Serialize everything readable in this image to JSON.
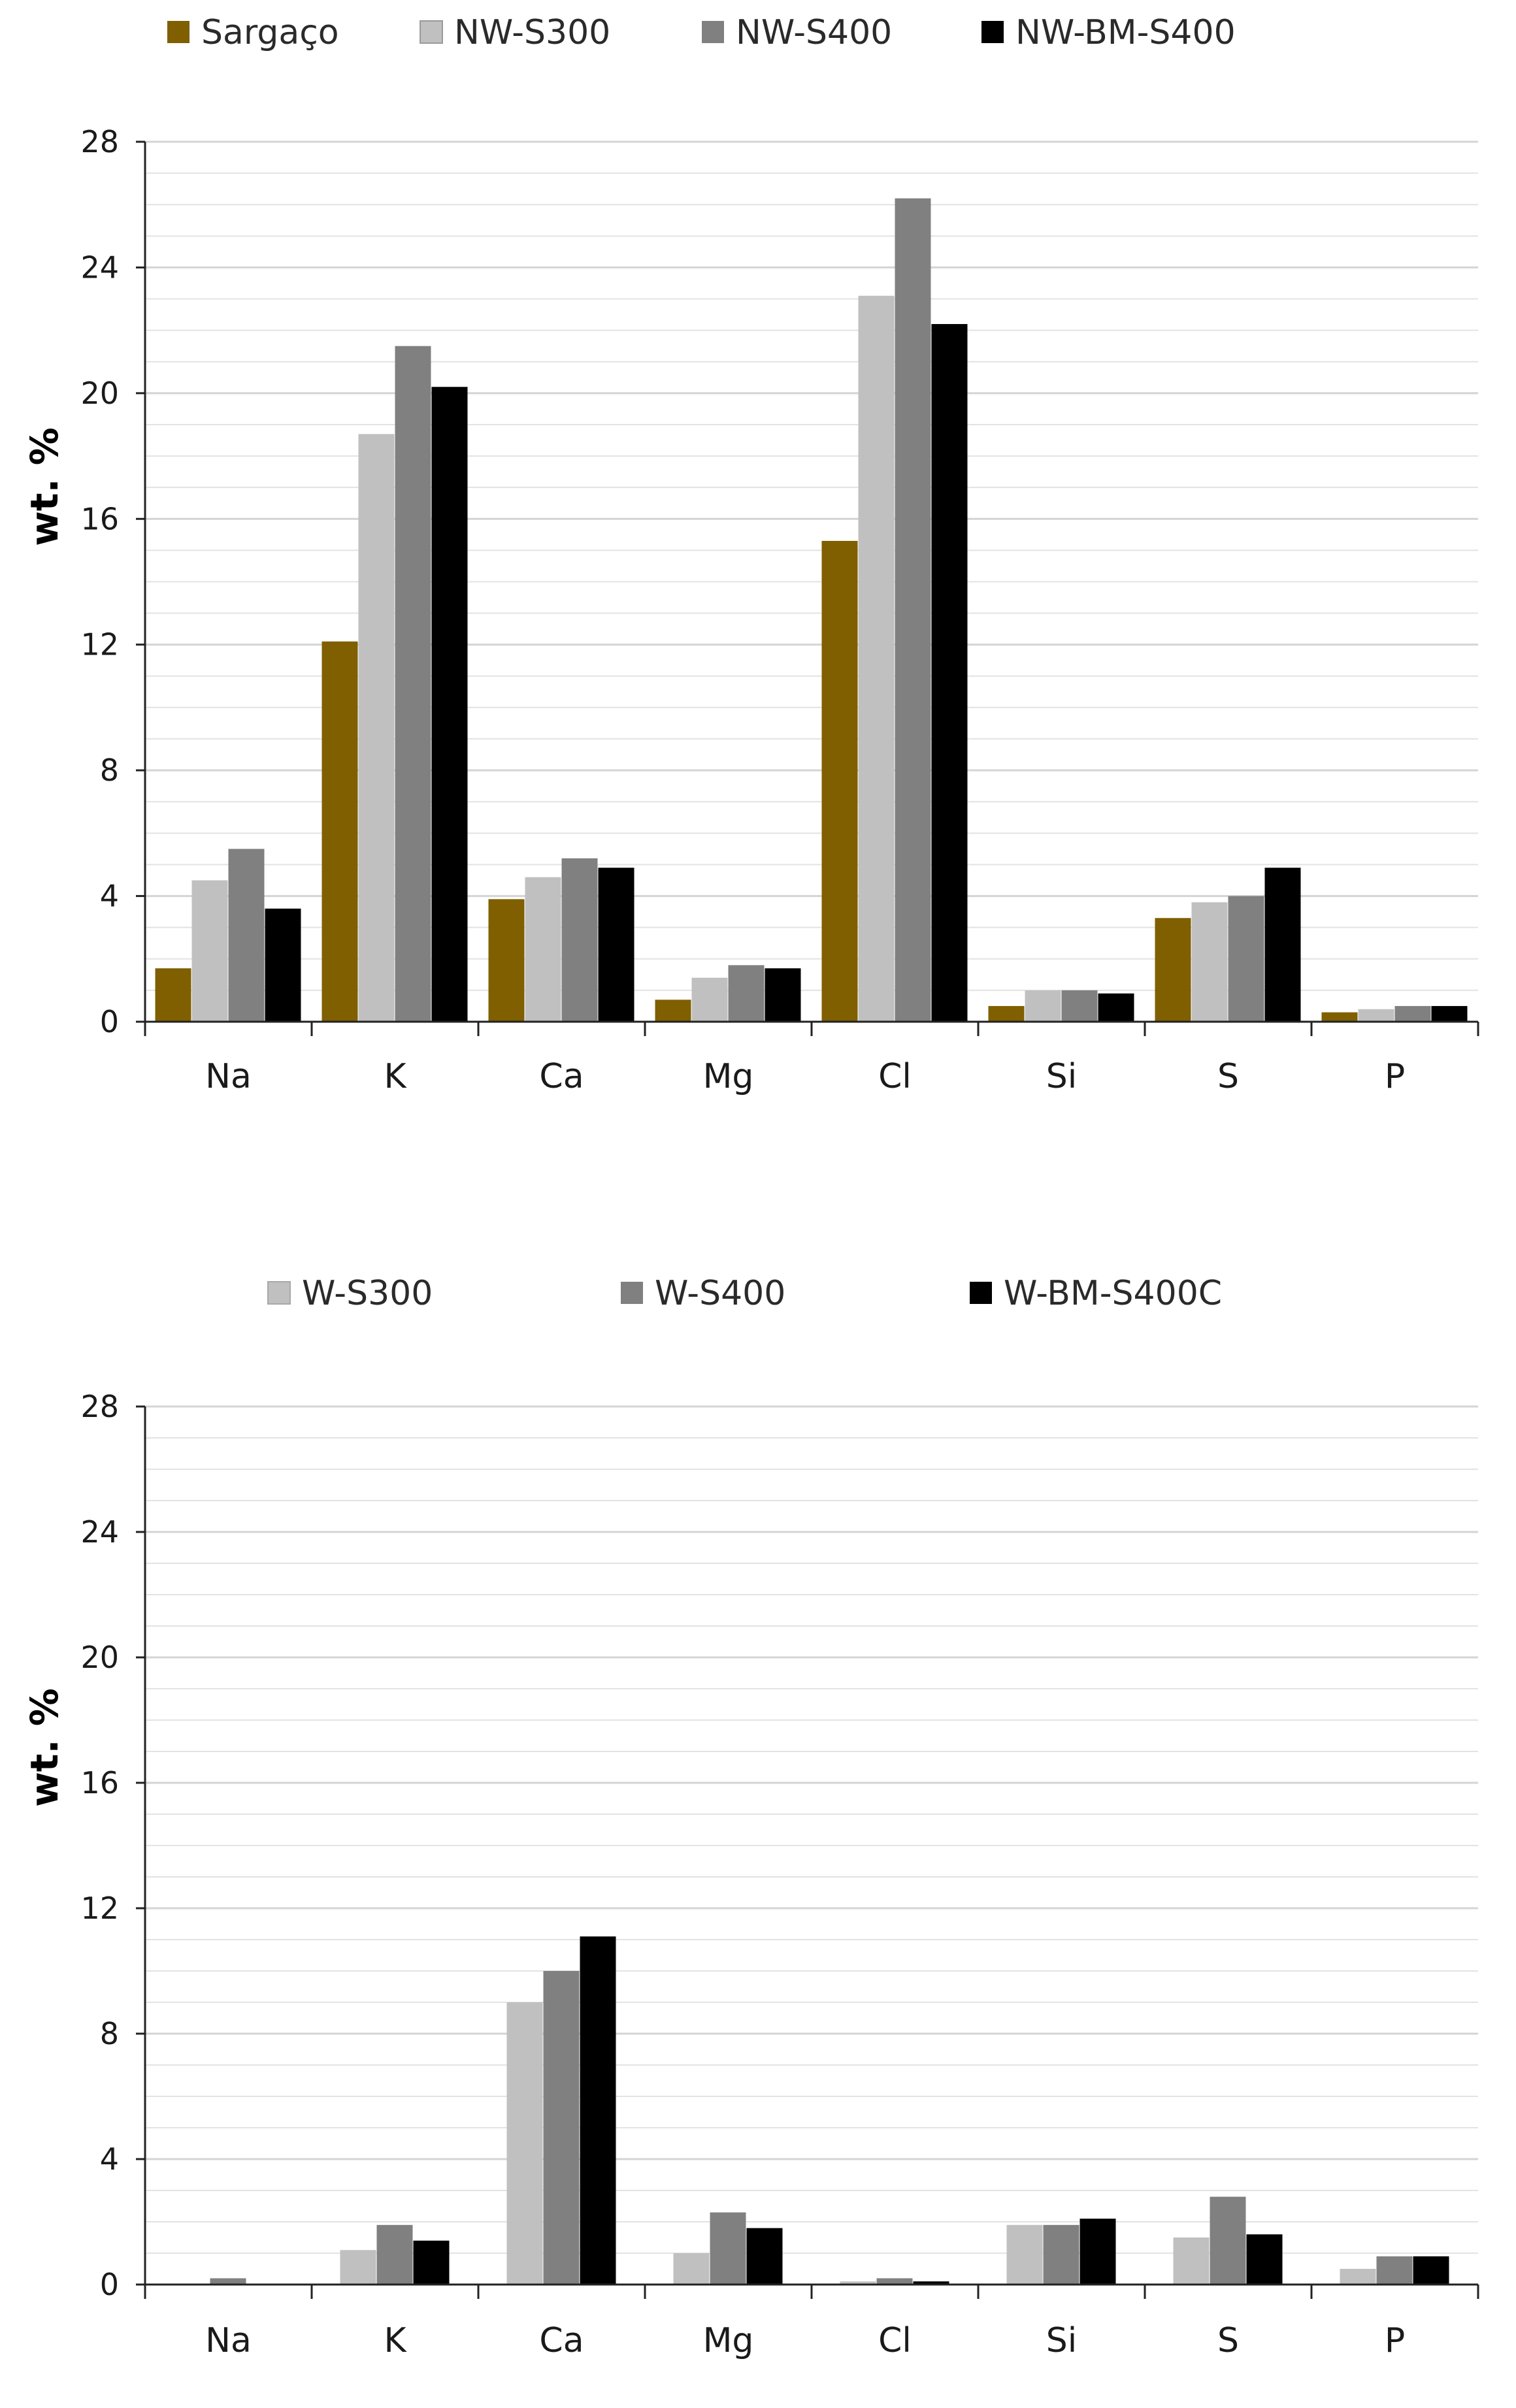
{
  "chart_data": [
    {
      "type": "bar",
      "title": "",
      "xlabel": "",
      "ylabel": "wt. %",
      "ylim": [
        0,
        28
      ],
      "yticks": [
        0,
        4,
        8,
        12,
        16,
        20,
        24,
        28
      ],
      "grid": true,
      "legend_position": "top",
      "categories": [
        "Na",
        "K",
        "Ca",
        "Mg",
        "Cl",
        "Si",
        "S",
        "P"
      ],
      "series": [
        {
          "name": "Sargaço",
          "color": "#7f5f00",
          "values": [
            1.7,
            12.1,
            3.9,
            0.7,
            15.3,
            0.5,
            3.3,
            0.3
          ]
        },
        {
          "name": "NW-S300",
          "color": "#c0c0c0",
          "values": [
            4.5,
            18.7,
            4.6,
            1.4,
            23.1,
            1.0,
            3.8,
            0.4
          ]
        },
        {
          "name": "NW-S400",
          "color": "#808080",
          "values": [
            5.5,
            21.5,
            5.2,
            1.8,
            26.2,
            1.0,
            4.0,
            0.5
          ]
        },
        {
          "name": "NW-BM-S400",
          "color": "#000000",
          "values": [
            3.6,
            20.2,
            4.9,
            1.7,
            22.2,
            0.9,
            4.9,
            0.5
          ]
        }
      ]
    },
    {
      "type": "bar",
      "title": "",
      "xlabel": "",
      "ylabel": "wt. %",
      "ylim": [
        0,
        28
      ],
      "yticks": [
        0,
        4,
        8,
        12,
        16,
        20,
        24,
        28
      ],
      "grid": true,
      "legend_position": "top",
      "categories": [
        "Na",
        "K",
        "Ca",
        "Mg",
        "Cl",
        "Si",
        "S",
        "P"
      ],
      "series": [
        {
          "name": "W-S300",
          "color": "#c0c0c0",
          "values": [
            0.0,
            1.1,
            9.0,
            1.0,
            0.1,
            1.9,
            1.5,
            0.5
          ]
        },
        {
          "name": "W-S400",
          "color": "#808080",
          "values": [
            0.2,
            1.9,
            10.0,
            2.3,
            0.2,
            1.9,
            2.8,
            0.9
          ]
        },
        {
          "name": "W-BM-S400C",
          "color": "#000000",
          "values": [
            0.0,
            1.4,
            11.1,
            1.8,
            0.1,
            2.1,
            1.6,
            0.9
          ]
        }
      ]
    }
  ]
}
